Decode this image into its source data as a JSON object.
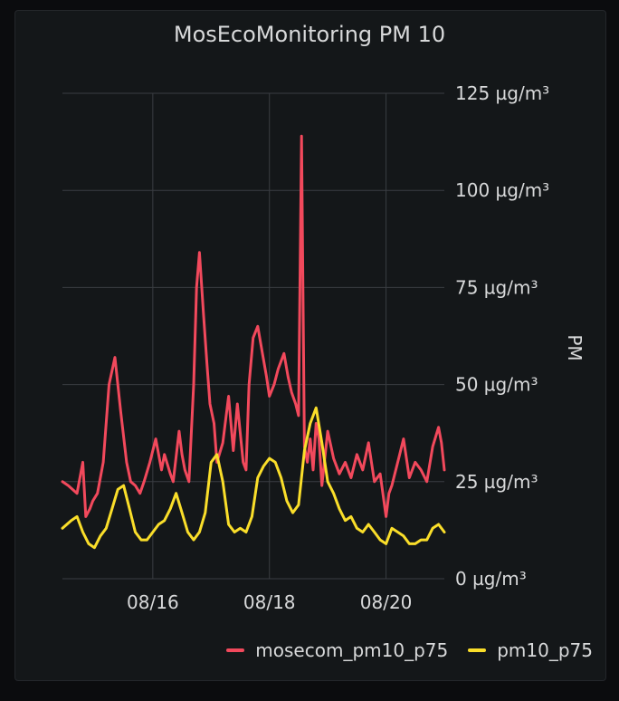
{
  "chart_data": {
    "type": "line",
    "title": "MosEcoMonitoring PM 10",
    "ylabel": "PM",
    "xlabel": "",
    "y_unit": "µg/m³",
    "ylim": [
      0,
      125
    ],
    "y_ticks": [
      0,
      25,
      50,
      75,
      100,
      125
    ],
    "y_tick_labels": [
      "0 µg/m³",
      "25 µg/m³",
      "50 µg/m³",
      "75 µg/m³",
      "100 µg/m³",
      "125 µg/m³"
    ],
    "x_unit": "days since 08/14 00:00",
    "xlim": [
      0.45,
      7.0
    ],
    "x_ticks": [
      2,
      4,
      6
    ],
    "x_tick_labels": [
      "08/16",
      "08/18",
      "08/20"
    ],
    "grid": true,
    "legend_position": "bottom-right",
    "series": [
      {
        "name": "mosecom_pm10_p75",
        "color": "#f2495c",
        "x": [
          0.45,
          0.55,
          0.7,
          0.8,
          0.85,
          0.92,
          0.97,
          1.05,
          1.15,
          1.25,
          1.35,
          1.45,
          1.55,
          1.62,
          1.7,
          1.78,
          1.85,
          1.95,
          2.05,
          2.15,
          2.2,
          2.3,
          2.35,
          2.45,
          2.5,
          2.55,
          2.62,
          2.7,
          2.75,
          2.8,
          2.87,
          2.93,
          2.98,
          3.05,
          3.1,
          3.2,
          3.3,
          3.38,
          3.45,
          3.55,
          3.6,
          3.65,
          3.72,
          3.8,
          3.88,
          3.95,
          4.0,
          4.08,
          4.15,
          4.25,
          4.32,
          4.38,
          4.45,
          4.5,
          4.55,
          4.6,
          4.65,
          4.7,
          4.75,
          4.8,
          4.85,
          4.9,
          5.0,
          5.1,
          5.2,
          5.3,
          5.4,
          5.5,
          5.6,
          5.7,
          5.8,
          5.9,
          6.0,
          6.05,
          6.1,
          6.2,
          6.3,
          6.4,
          6.5,
          6.6,
          6.7,
          6.8,
          6.9,
          6.95,
          7.0
        ],
        "y": [
          25,
          24,
          22,
          30,
          16,
          18,
          20,
          22,
          30,
          50,
          57,
          43,
          30,
          25,
          24,
          22,
          25,
          30,
          36,
          28,
          32,
          27,
          25,
          38,
          32,
          28,
          25,
          50,
          75,
          84,
          68,
          55,
          45,
          40,
          30,
          35,
          47,
          33,
          45,
          30,
          28,
          50,
          62,
          65,
          58,
          52,
          47,
          50,
          54,
          58,
          52,
          48,
          45,
          42,
          114,
          34,
          30,
          36,
          28,
          40,
          36,
          24,
          38,
          31,
          27,
          30,
          26,
          32,
          28,
          35,
          25,
          27,
          16,
          22,
          24,
          30,
          36,
          26,
          30,
          28,
          25,
          34,
          39,
          35,
          28
        ]
      },
      {
        "name": "pm10_p75",
        "color": "#fade2a",
        "x": [
          0.45,
          0.6,
          0.7,
          0.8,
          0.9,
          1.0,
          1.1,
          1.2,
          1.3,
          1.4,
          1.5,
          1.6,
          1.7,
          1.8,
          1.9,
          2.0,
          2.1,
          2.2,
          2.3,
          2.4,
          2.5,
          2.6,
          2.7,
          2.8,
          2.9,
          3.0,
          3.1,
          3.2,
          3.3,
          3.4,
          3.5,
          3.6,
          3.7,
          3.8,
          3.9,
          4.0,
          4.1,
          4.2,
          4.3,
          4.4,
          4.5,
          4.6,
          4.7,
          4.8,
          4.9,
          5.0,
          5.1,
          5.2,
          5.3,
          5.4,
          5.5,
          5.6,
          5.7,
          5.8,
          5.9,
          6.0,
          6.1,
          6.2,
          6.3,
          6.4,
          6.5,
          6.6,
          6.7,
          6.8,
          6.9,
          7.0
        ],
        "y": [
          13,
          15,
          16,
          12,
          9,
          8,
          11,
          13,
          18,
          23,
          24,
          18,
          12,
          10,
          10,
          12,
          14,
          15,
          18,
          22,
          17,
          12,
          10,
          12,
          17,
          30,
          32,
          25,
          14,
          12,
          13,
          12,
          16,
          26,
          29,
          31,
          30,
          26,
          20,
          17,
          19,
          33,
          40,
          44,
          35,
          25,
          22,
          18,
          15,
          16,
          13,
          12,
          14,
          12,
          10,
          9,
          13,
          12,
          11,
          9,
          9,
          10,
          10,
          13,
          14,
          12
        ]
      }
    ]
  }
}
